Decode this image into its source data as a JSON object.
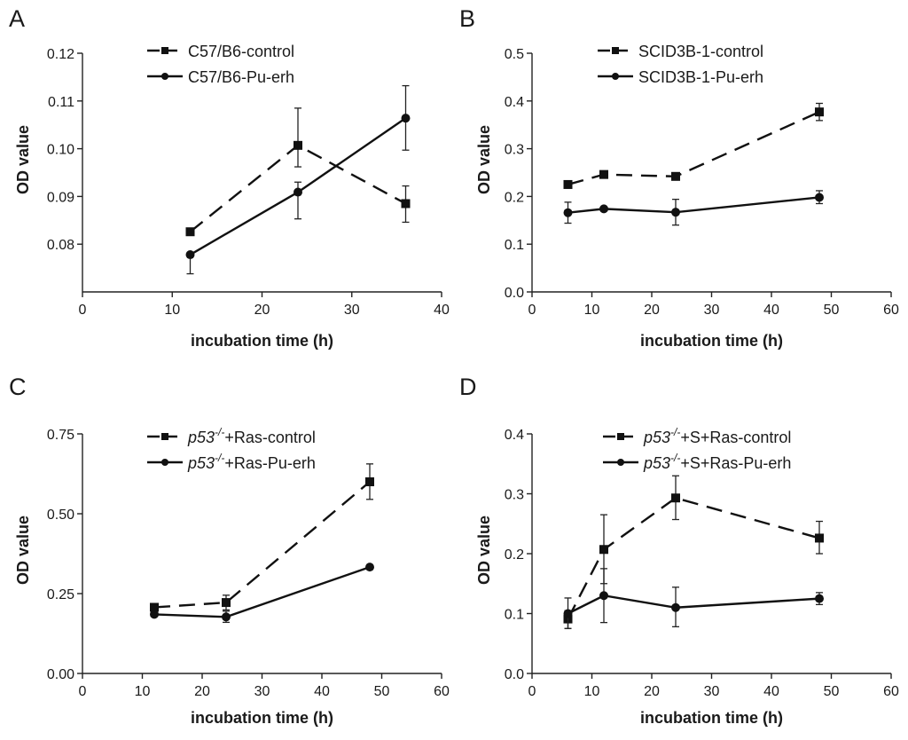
{
  "chart_data": [
    {
      "panel": "A",
      "type": "line",
      "title": "",
      "xlabel": "incubation time (h)",
      "ylabel": "OD value",
      "xlim": [
        0,
        40
      ],
      "ylim": [
        0.07,
        0.12
      ],
      "xticks": [
        0,
        10,
        20,
        30,
        40
      ],
      "xtick_labels": [
        "0",
        "10",
        "20",
        "30",
        "40"
      ],
      "yticks": [
        0.08,
        0.09,
        0.1,
        0.11,
        0.12
      ],
      "ytick_labels": [
        "0.08",
        "0.09",
        "0.10",
        "0.11",
        "0.12"
      ],
      "grid": false,
      "legend_position": "top-center",
      "series": [
        {
          "name": "C57/B6-control",
          "legend_prefix": "",
          "legend_sup": "",
          "legend_suffix": "C57/B6-control",
          "marker": "square",
          "dash": true,
          "x": [
            12,
            24,
            36
          ],
          "y": [
            0.0826,
            0.1007,
            0.0885
          ],
          "err_low": [
            0.0826,
            0.0962,
            0.0846
          ],
          "err_high": [
            0.0826,
            0.1085,
            0.0922
          ]
        },
        {
          "name": "C57/B6-Pu-erh",
          "legend_prefix": "",
          "legend_sup": "",
          "legend_suffix": "C57/B6-Pu-erh",
          "marker": "circle",
          "dash": false,
          "x": [
            12,
            24,
            36
          ],
          "y": [
            0.0778,
            0.0909,
            0.1064
          ],
          "err_low": [
            0.0738,
            0.0853,
            0.0997
          ],
          "err_high": [
            0.0778,
            0.093,
            0.1132
          ]
        }
      ]
    },
    {
      "panel": "B",
      "type": "line",
      "title": "",
      "xlabel": "incubation time (h)",
      "ylabel": "OD value",
      "xlim": [
        0,
        60
      ],
      "ylim": [
        0.0,
        0.5
      ],
      "xticks": [
        0,
        10,
        20,
        30,
        40,
        50,
        60
      ],
      "xtick_labels": [
        "0",
        "10",
        "20",
        "30",
        "40",
        "50",
        "60"
      ],
      "yticks": [
        0.0,
        0.1,
        0.2,
        0.3,
        0.4,
        0.5
      ],
      "ytick_labels": [
        "0.0",
        "0.1",
        "0.2",
        "0.3",
        "0.4",
        "0.5"
      ],
      "grid": false,
      "legend_position": "top-center",
      "series": [
        {
          "name": "SCID3B-1-control",
          "legend_prefix": "",
          "legend_sup": "",
          "legend_suffix": "SCID3B-1-control",
          "marker": "square",
          "dash": true,
          "x": [
            6,
            12,
            24,
            48
          ],
          "y": [
            0.225,
            0.246,
            0.242,
            0.377
          ],
          "err_low": [
            0.225,
            0.246,
            0.242,
            0.359
          ],
          "err_high": [
            0.225,
            0.246,
            0.242,
            0.395
          ]
        },
        {
          "name": "SCID3B-1-Pu-erh",
          "legend_prefix": "",
          "legend_sup": "",
          "legend_suffix": "SCID3B-1-Pu-erh",
          "marker": "circle",
          "dash": false,
          "x": [
            6,
            12,
            24,
            48
          ],
          "y": [
            0.166,
            0.174,
            0.167,
            0.198
          ],
          "err_low": [
            0.144,
            0.174,
            0.14,
            0.185
          ],
          "err_high": [
            0.188,
            0.174,
            0.194,
            0.212
          ]
        }
      ]
    },
    {
      "panel": "C",
      "type": "line",
      "title": "",
      "xlabel": "incubation time (h)",
      "ylabel": "OD value",
      "xlim": [
        0,
        60
      ],
      "ylim": [
        0.0,
        0.75
      ],
      "xticks": [
        0,
        10,
        20,
        30,
        40,
        50,
        60
      ],
      "xtick_labels": [
        "0",
        "10",
        "20",
        "30",
        "40",
        "50",
        "60"
      ],
      "yticks": [
        0.0,
        0.25,
        0.5,
        0.75
      ],
      "ytick_labels": [
        "0.00",
        "0.25",
        "0.50",
        "0.75"
      ],
      "grid": false,
      "legend_position": "top-center",
      "series": [
        {
          "name": "p53-/-+Ras-control",
          "legend_prefix": "p53",
          "legend_sup": "-/-",
          "legend_suffix": "+Ras-control",
          "marker": "square",
          "dash": true,
          "x": [
            12,
            24,
            48
          ],
          "y": [
            0.207,
            0.222,
            0.6
          ],
          "err_low": [
            0.195,
            0.199,
            0.545
          ],
          "err_high": [
            0.219,
            0.245,
            0.656
          ]
        },
        {
          "name": "p53-/-+Ras-Pu-erh",
          "legend_prefix": "p53",
          "legend_sup": "-/-",
          "legend_suffix": "+Ras-Pu-erh",
          "marker": "circle",
          "dash": false,
          "x": [
            12,
            24,
            48
          ],
          "y": [
            0.185,
            0.177,
            0.333
          ],
          "err_low": [
            0.18,
            0.16,
            0.333
          ],
          "err_high": [
            0.19,
            0.195,
            0.333
          ]
        }
      ]
    },
    {
      "panel": "D",
      "type": "line",
      "title": "",
      "xlabel": "incubation time (h)",
      "ylabel": "OD value",
      "xlim": [
        0,
        60
      ],
      "ylim": [
        0.0,
        0.4
      ],
      "xticks": [
        0,
        10,
        20,
        30,
        40,
        50,
        60
      ],
      "xtick_labels": [
        "0",
        "10",
        "20",
        "30",
        "40",
        "50",
        "60"
      ],
      "yticks": [
        0.0,
        0.1,
        0.2,
        0.3,
        0.4
      ],
      "ytick_labels": [
        "0.0",
        "0.1",
        "0.2",
        "0.3",
        "0.4"
      ],
      "grid": false,
      "legend_position": "top-center",
      "series": [
        {
          "name": "p53-/-+S+Ras-control",
          "legend_prefix": "p53",
          "legend_sup": "-/-",
          "legend_suffix": "+S+Ras-control",
          "marker": "square",
          "dash": true,
          "x": [
            6,
            12,
            24,
            48
          ],
          "y": [
            0.091,
            0.207,
            0.293,
            0.226
          ],
          "err_low": [
            0.075,
            0.15,
            0.257,
            0.2
          ],
          "err_high": [
            0.105,
            0.265,
            0.33,
            0.254
          ]
        },
        {
          "name": "p53-/-+S+Ras-Pu-erh",
          "legend_prefix": "p53",
          "legend_sup": "-/-",
          "legend_suffix": "+S+Ras-Pu-erh",
          "marker": "circle",
          "dash": false,
          "x": [
            6,
            12,
            24,
            48
          ],
          "y": [
            0.1,
            0.13,
            0.11,
            0.125
          ],
          "err_low": [
            0.075,
            0.085,
            0.078,
            0.115
          ],
          "err_high": [
            0.126,
            0.175,
            0.144,
            0.135
          ]
        }
      ]
    }
  ],
  "colors": {
    "line": "#111111",
    "axis": "#222222",
    "text": "#1a1a1a",
    "background": "#ffffff"
  }
}
